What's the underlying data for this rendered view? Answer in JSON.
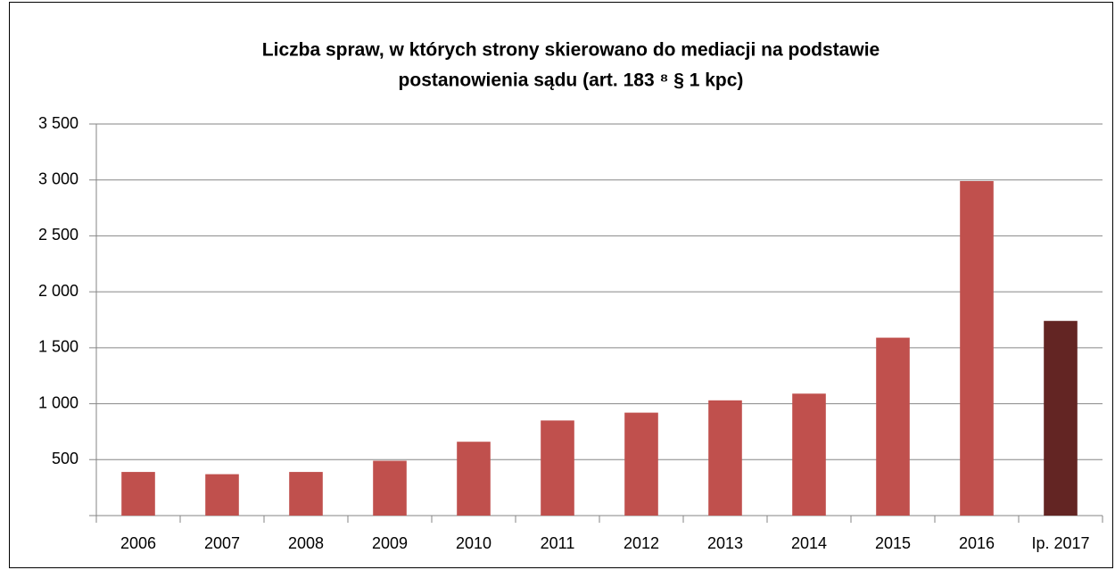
{
  "chart_data": {
    "type": "bar",
    "title": [
      "Liczba spraw, w których strony skierowano do mediacji na podstawie",
      "postanowienia sądu (art. 183 ⁸ § 1 kpc)"
    ],
    "categories": [
      "2006",
      "2007",
      "2008",
      "2009",
      "2010",
      "2011",
      "2012",
      "2013",
      "2014",
      "2015",
      "2016",
      "Ip. 2017"
    ],
    "values": [
      390,
      370,
      390,
      490,
      660,
      850,
      920,
      1030,
      1090,
      1590,
      2990,
      1740
    ],
    "colors": [
      "#c0504d",
      "#c0504d",
      "#c0504d",
      "#c0504d",
      "#c0504d",
      "#c0504d",
      "#c0504d",
      "#c0504d",
      "#c0504d",
      "#c0504d",
      "#c0504d",
      "#632523"
    ],
    "ylim": [
      0,
      3500
    ],
    "yticks": [
      500,
      {
        "value": 1000,
        "label": "1 000"
      },
      {
        "value": 1500,
        "label": "1 500"
      },
      {
        "value": 2000,
        "label": "2 000"
      },
      {
        "value": 2500,
        "label": "2 500"
      },
      {
        "value": 3000,
        "label": "3 000"
      },
      {
        "value": 3500,
        "label": "3 500"
      }
    ],
    "grid": true
  }
}
